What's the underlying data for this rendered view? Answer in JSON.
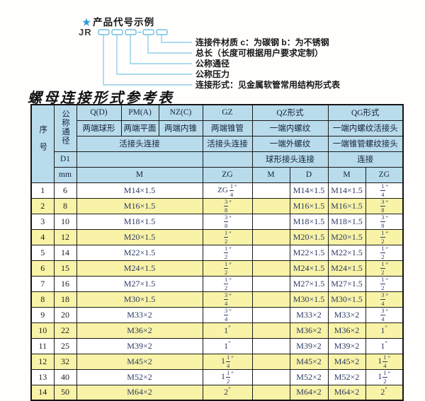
{
  "colors": {
    "accent_cyan": "#2a9fd4",
    "line_blue": "#90cfe8",
    "header_bg": "#b9dcec",
    "row_yellow": "#f8f3a6",
    "row_white": "#ffffff",
    "grid_border": "#1a1a1a",
    "value_navy": "#2b3a64"
  },
  "diagram": {
    "heading_star": "★",
    "heading": "产品代号示例",
    "code_prefix": "JR",
    "labels": [
      "连接件材质  c：为碳钢  b：为不锈钢",
      "总长（长度可根据用户要求定制）",
      "公称通径",
      "公称压力",
      "连接形式：见金属软管常用结构形式表"
    ]
  },
  "table": {
    "title": "螺母连接形式参考表",
    "header": {
      "seq": "序号",
      "nominal": "公称通径",
      "d1": "D1",
      "mm": "mm",
      "q": "Q(D)",
      "q_sub": "两端球形",
      "pm": "PM(A)",
      "pm_sub": "两端平面",
      "nz": "NZ(C)",
      "nz_sub": "两端内锥",
      "gz": "GZ",
      "gz_sub": "两端锥管",
      "gz_join": "活接头连接",
      "gz_unit": "ZG",
      "union_join": "活接头连接",
      "m_unit": "M",
      "qz": "QZ形式",
      "qz_sub1": "一端内螺纹",
      "qz_sub2": "一端外螺纹",
      "qz_sub3": "球形接头连接",
      "qz_m": "M",
      "qz_d": "D",
      "qg": "QG形式",
      "qg_sub1": "一端内螺纹活接头",
      "qg_sub2": "一端锥管螺纹接头",
      "qg_sub3": "连接",
      "qg_m": "M",
      "qg_zg": "ZG"
    },
    "rows": [
      {
        "seq": "1",
        "mm": "6",
        "m": "M14×1.5",
        "gz_pre": "ZG",
        "gz_w": "",
        "gz_n": "1",
        "gz_d": "4",
        "qz_m": "",
        "qz_d": "M14×1.5",
        "qg_m": "M14×1.5",
        "qg_w": "",
        "qg_n": "1",
        "qg_d": "4"
      },
      {
        "seq": "2",
        "mm": "8",
        "m": "M16×1.5",
        "gz_pre": "",
        "gz_w": "",
        "gz_n": "3",
        "gz_d": "8",
        "qz_m": "",
        "qz_d": "M16×1.5",
        "qg_m": "M16×1.5",
        "qg_w": "",
        "qg_n": "3",
        "qg_d": "8"
      },
      {
        "seq": "3",
        "mm": "10",
        "m": "M18×1.5",
        "gz_pre": "",
        "gz_w": "",
        "gz_n": "3",
        "gz_d": "8",
        "qz_m": "",
        "qz_d": "M18×1.5",
        "qg_m": "M18×1.5",
        "qg_w": "",
        "qg_n": "3",
        "qg_d": "8"
      },
      {
        "seq": "4",
        "mm": "12",
        "m": "M20×1.5",
        "gz_pre": "",
        "gz_w": "",
        "gz_n": "1",
        "gz_d": "2",
        "qz_m": "",
        "qz_d": "M20×1.5",
        "qg_m": "M20×1.5",
        "qg_w": "",
        "qg_n": "1",
        "qg_d": "2"
      },
      {
        "seq": "5",
        "mm": "14",
        "m": "M22×1.5",
        "gz_pre": "",
        "gz_w": "",
        "gz_n": "1",
        "gz_d": "2",
        "qz_m": "",
        "qz_d": "M22×1.5",
        "qg_m": "M22×1.5",
        "qg_w": "",
        "qg_n": "1",
        "qg_d": "2"
      },
      {
        "seq": "6",
        "mm": "15",
        "m": "M24×1.5",
        "gz_pre": "",
        "gz_w": "",
        "gz_n": "1",
        "gz_d": "2",
        "qz_m": "",
        "qz_d": "M24×1.5",
        "qg_m": "M24×1.5",
        "qg_w": "",
        "qg_n": "1",
        "qg_d": "2"
      },
      {
        "seq": "7",
        "mm": "16",
        "m": "M27×1.5",
        "gz_pre": "",
        "gz_w": "",
        "gz_n": "1",
        "gz_d": "2",
        "qz_m": "",
        "qz_d": "M27×1.5",
        "qg_m": "M27×1.5",
        "qg_w": "",
        "qg_n": "1",
        "qg_d": "2"
      },
      {
        "seq": "8",
        "mm": "18",
        "m": "M30×1.5",
        "gz_pre": "",
        "gz_w": "",
        "gz_n": "3",
        "gz_d": "4",
        "qz_m": "",
        "qz_d": "M30×1.5",
        "qg_m": "M30×1.5",
        "qg_w": "",
        "qg_n": "3",
        "qg_d": "4"
      },
      {
        "seq": "9",
        "mm": "20",
        "m": "M33×2",
        "gz_pre": "",
        "gz_w": "",
        "gz_n": "3",
        "gz_d": "4",
        "qz_m": "",
        "qz_d": "M33×2",
        "qg_m": "M33×2",
        "qg_w": "",
        "qg_n": "3",
        "qg_d": "4"
      },
      {
        "seq": "10",
        "mm": "22",
        "m": "M36×2",
        "gz_pre": "",
        "gz_w": "1",
        "gz_n": "",
        "gz_d": "",
        "qz_m": "",
        "qz_d": "M36×2",
        "qg_m": "M36×2",
        "qg_w": "1",
        "qg_n": "",
        "qg_d": ""
      },
      {
        "seq": "11",
        "mm": "25",
        "m": "M39×2",
        "gz_pre": "",
        "gz_w": "1",
        "gz_n": "",
        "gz_d": "",
        "qz_m": "",
        "qz_d": "M39×2",
        "qg_m": "M39×2",
        "qg_w": "1",
        "qg_n": "",
        "qg_d": ""
      },
      {
        "seq": "12",
        "mm": "32",
        "m": "M45×2",
        "gz_pre": "",
        "gz_w": "1",
        "gz_n": "1",
        "gz_d": "4",
        "qz_m": "",
        "qz_d": "M45×2",
        "qg_m": "M45×2",
        "qg_w": "1",
        "qg_n": "1",
        "qg_d": "4"
      },
      {
        "seq": "13",
        "mm": "40",
        "m": "M52×2",
        "gz_pre": "",
        "gz_w": "1",
        "gz_n": "1",
        "gz_d": "2",
        "qz_m": "",
        "qz_d": "M52×2",
        "qg_m": "M52×2",
        "qg_w": "1",
        "qg_n": "1",
        "qg_d": "2"
      },
      {
        "seq": "14",
        "mm": "50",
        "m": "M64×2",
        "gz_pre": "",
        "gz_w": "2",
        "gz_n": "",
        "gz_d": "",
        "qz_m": "",
        "qz_d": "M64×2",
        "qg_m": "M64×2",
        "qg_w": "2",
        "qg_n": "",
        "qg_d": ""
      }
    ]
  }
}
